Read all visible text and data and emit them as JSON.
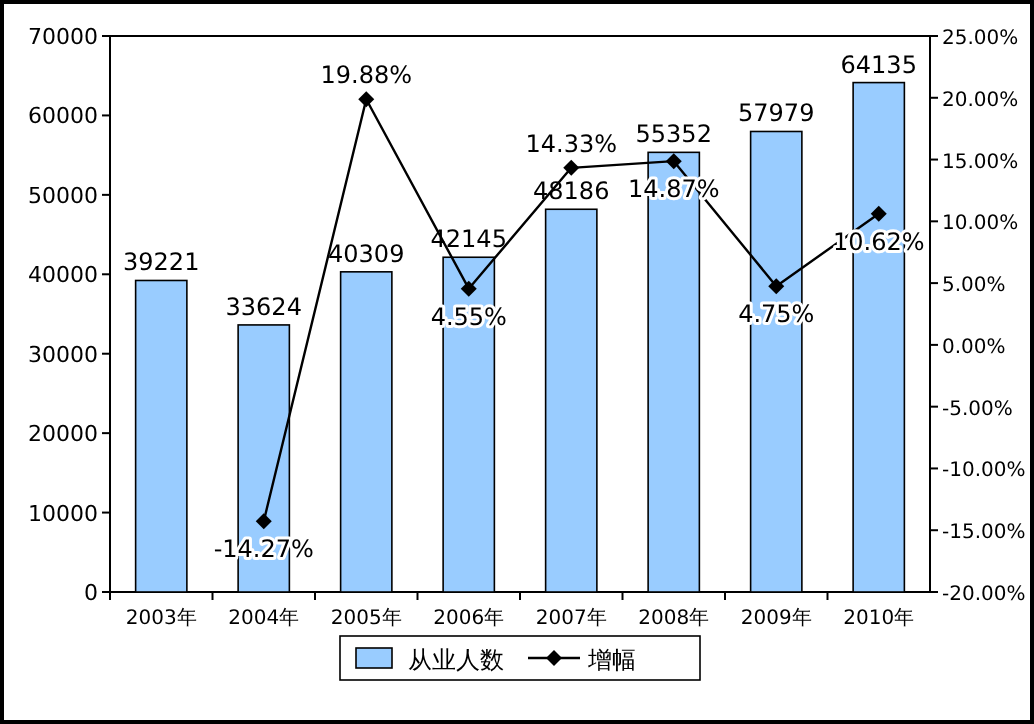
{
  "chart_data": {
    "type": "bar",
    "categories": [
      "2003年",
      "2004年",
      "2005年",
      "2006年",
      "2007年",
      "2008年",
      "2009年",
      "2010年"
    ],
    "series": [
      {
        "name": "从业人数",
        "color": "#99ccff",
        "values": [
          39221,
          33624,
          40309,
          42145,
          48186,
          55352,
          57979,
          64135
        ],
        "value_labels": [
          "39221",
          "33624",
          "40309",
          "42145",
          "48186",
          "55352",
          "57979",
          "64135"
        ]
      },
      {
        "name": "增幅",
        "type": "line",
        "axis": "y2",
        "color": "#000000",
        "values": [
          null,
          -14.27,
          19.88,
          4.55,
          14.33,
          14.87,
          4.75,
          10.62
        ],
        "value_labels": [
          null,
          "-14.27%",
          "19.88%",
          "4.55%",
          "14.33%",
          "14.87%",
          "4.75%",
          "10.62%"
        ]
      }
    ],
    "ylim": [
      0,
      70000
    ],
    "yticks": [
      0,
      10000,
      20000,
      30000,
      40000,
      50000,
      60000,
      70000
    ],
    "y2lim": [
      -20,
      25
    ],
    "y2ticks": [
      {
        "value": -20,
        "label": "-20.00%"
      },
      {
        "value": -15,
        "label": "-15.00%"
      },
      {
        "value": -10,
        "label": "-10.00%"
      },
      {
        "value": -5,
        "label": "-5.00%"
      },
      {
        "value": 0,
        "label": "0.00%"
      },
      {
        "value": 5,
        "label": "5.00%"
      },
      {
        "value": 10,
        "label": "10.00%"
      },
      {
        "value": 15,
        "label": "15.00%"
      },
      {
        "value": 20,
        "label": "20.00%"
      },
      {
        "value": 25,
        "label": "25.00%"
      }
    ],
    "legend": "bottom",
    "marker": "diamond",
    "line_style": "solid"
  }
}
